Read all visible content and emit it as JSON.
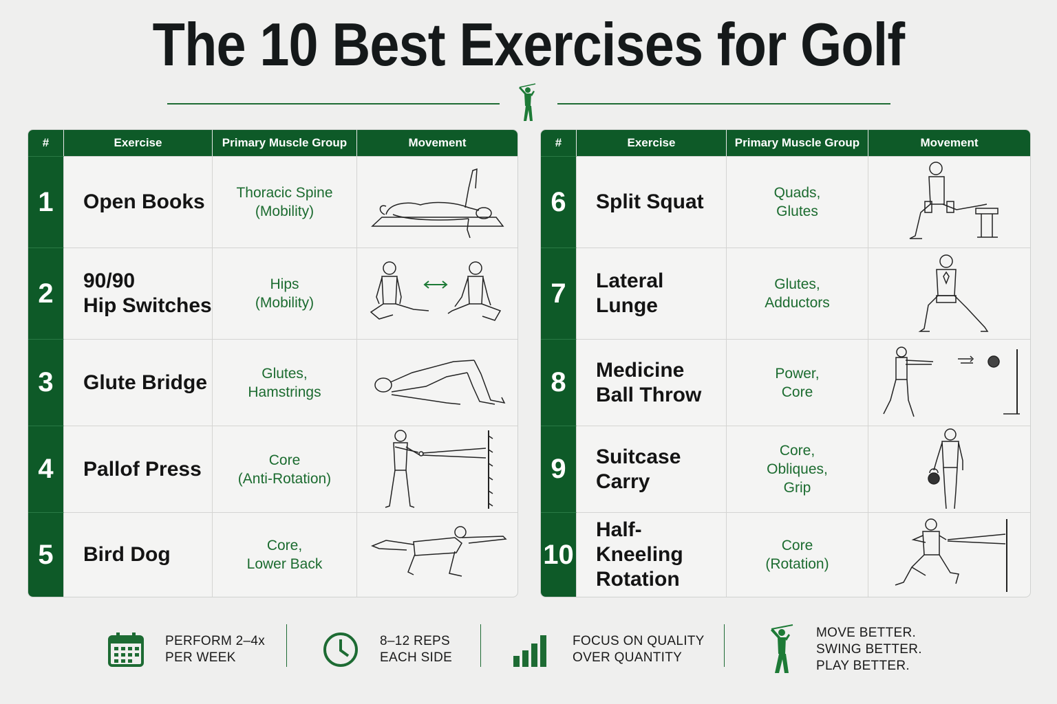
{
  "title": "The 10 Best Exercises for Golf",
  "colors": {
    "accent": "#0e5a28",
    "muscle_text": "#1b6b2f",
    "background": "#efefee"
  },
  "header": {
    "num": "#",
    "exercise": "Exercise",
    "muscle": "Primary Muscle Group",
    "movement": "Movement"
  },
  "left_rows": [
    {
      "num": "1",
      "name": [
        "Open Books"
      ],
      "muscle": [
        "Thoracic Spine",
        "(Mobility)"
      ],
      "icon": "open-books-illustration"
    },
    {
      "num": "2",
      "name": [
        "90/90",
        "Hip Switches"
      ],
      "muscle": [
        "Hips",
        "(Mobility)"
      ],
      "icon": "hip-switch-illustration"
    },
    {
      "num": "3",
      "name": [
        "Glute Bridge"
      ],
      "muscle": [
        "Glutes,",
        "Hamstrings"
      ],
      "icon": "glute-bridge-illustration"
    },
    {
      "num": "4",
      "name": [
        "Pallof Press"
      ],
      "muscle": [
        "Core",
        "(Anti-Rotation)"
      ],
      "icon": "pallof-press-illustration"
    },
    {
      "num": "5",
      "name": [
        "Bird Dog"
      ],
      "muscle": [
        "Core,",
        "Lower Back"
      ],
      "icon": "bird-dog-illustration"
    }
  ],
  "right_rows": [
    {
      "num": "6",
      "name": [
        "Split Squat"
      ],
      "muscle": [
        "Quads,",
        "Glutes"
      ],
      "icon": "split-squat-illustration"
    },
    {
      "num": "7",
      "name": [
        "Lateral Lunge"
      ],
      "muscle": [
        "Glutes,",
        "Adductors"
      ],
      "icon": "lateral-lunge-illustration"
    },
    {
      "num": "8",
      "name": [
        "Medicine",
        "Ball Throw"
      ],
      "muscle": [
        "Power,",
        "Core"
      ],
      "icon": "ball-throw-illustration"
    },
    {
      "num": "9",
      "name": [
        "Suitcase Carry"
      ],
      "muscle": [
        "Core,",
        "Obliques,",
        "Grip"
      ],
      "icon": "suitcase-carry-illustration"
    },
    {
      "num": "10",
      "name": [
        "Half-Kneeling",
        "Rotation"
      ],
      "muscle": [
        "Core",
        "(Rotation)"
      ],
      "icon": "kneeling-rotation-illustration"
    }
  ],
  "footer": {
    "frequency": [
      "PERFORM 2–4x",
      "PER WEEK"
    ],
    "reps": [
      "8–12 REPS",
      "EACH SIDE"
    ],
    "quality": [
      "FOCUS ON QUALITY",
      "OVER QUANTITY"
    ],
    "motto": [
      "MOVE BETTER.",
      "SWING BETTER.",
      "PLAY BETTER."
    ]
  }
}
